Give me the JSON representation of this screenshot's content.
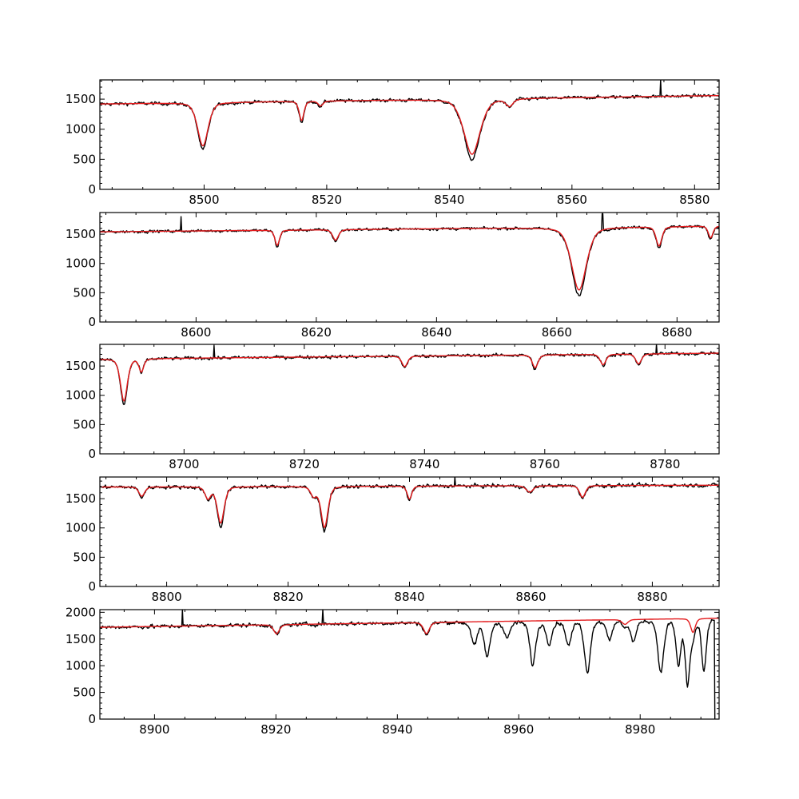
{
  "colors": {
    "observed": "#000000",
    "model": "#e31a1c",
    "background": "#ffffff"
  },
  "chart_data": [
    {
      "type": "line",
      "xlim": [
        8483,
        8584
      ],
      "ylim": [
        0,
        1820
      ],
      "xticks": [
        8500,
        8520,
        8540,
        8560,
        8580
      ],
      "yticks": [
        0,
        500,
        1000,
        1500
      ],
      "baseline": [
        [
          8483,
          1420
        ],
        [
          8584,
          1560
        ]
      ],
      "noise": 45,
      "lines": [
        {
          "center": 8499.8,
          "depth": 720,
          "width": 0.9
        },
        {
          "center": 8515.9,
          "depth": 320,
          "width": 0.4
        },
        {
          "center": 8519.0,
          "depth": 80,
          "width": 0.4
        },
        {
          "center": 8543.7,
          "depth": 920,
          "width": 1.4
        },
        {
          "center": 8549.8,
          "depth": 120,
          "width": 0.6
        }
      ],
      "spikes": [
        {
          "x": 8574.5,
          "y": 1820
        }
      ],
      "grid": false,
      "legend": "none"
    },
    {
      "type": "line",
      "xlim": [
        8584,
        8687
      ],
      "ylim": [
        0,
        1870
      ],
      "xticks": [
        8600,
        8620,
        8640,
        8660,
        8680
      ],
      "yticks": [
        0,
        500,
        1000,
        1500
      ],
      "baseline": [
        [
          8584,
          1540
        ],
        [
          8687,
          1640
        ]
      ],
      "noise": 40,
      "lines": [
        {
          "center": 8613.5,
          "depth": 260,
          "width": 0.4
        },
        {
          "center": 8623.2,
          "depth": 180,
          "width": 0.5
        },
        {
          "center": 8663.7,
          "depth": 1070,
          "width": 1.3
        },
        {
          "center": 8677.0,
          "depth": 330,
          "width": 0.5
        },
        {
          "center": 8685.6,
          "depth": 200,
          "width": 0.4
        }
      ],
      "spikes": [
        {
          "x": 8597.5,
          "y": 1800
        },
        {
          "x": 8667.6,
          "y": 1850
        }
      ],
      "grid": false,
      "legend": "none"
    },
    {
      "type": "line",
      "xlim": [
        8686,
        8789
      ],
      "ylim": [
        0,
        1870
      ],
      "xticks": [
        8700,
        8720,
        8740,
        8760,
        8780
      ],
      "yticks": [
        0,
        500,
        1000,
        1500
      ],
      "baseline": [
        [
          8686,
          1620
        ],
        [
          8789,
          1720
        ]
      ],
      "noise": 45,
      "lines": [
        {
          "center": 8690.0,
          "depth": 720,
          "width": 0.6
        },
        {
          "center": 8692.9,
          "depth": 220,
          "width": 0.4
        },
        {
          "center": 8736.7,
          "depth": 180,
          "width": 0.5
        },
        {
          "center": 8758.4,
          "depth": 220,
          "width": 0.5
        },
        {
          "center": 8769.7,
          "depth": 180,
          "width": 0.5
        },
        {
          "center": 8775.6,
          "depth": 170,
          "width": 0.5
        }
      ],
      "spikes": [
        {
          "x": 8705.0,
          "y": 1850
        },
        {
          "x": 8778.6,
          "y": 1870
        }
      ],
      "grid": false,
      "legend": "none"
    },
    {
      "type": "line",
      "xlim": [
        8789,
        8891
      ],
      "ylim": [
        0,
        1870
      ],
      "xticks": [
        8800,
        8820,
        8840,
        8860,
        8880
      ],
      "yticks": [
        0,
        500,
        1000,
        1500
      ],
      "baseline": [
        [
          8789,
          1700
        ],
        [
          8891,
          1730
        ]
      ],
      "noise": 50,
      "lines": [
        {
          "center": 8795.9,
          "depth": 160,
          "width": 0.5
        },
        {
          "center": 8806.8,
          "depth": 200,
          "width": 0.5
        },
        {
          "center": 8808.9,
          "depth": 620,
          "width": 0.6
        },
        {
          "center": 8824.2,
          "depth": 160,
          "width": 0.5
        },
        {
          "center": 8826.0,
          "depth": 700,
          "width": 0.6
        },
        {
          "center": 8840.0,
          "depth": 220,
          "width": 0.4
        },
        {
          "center": 8859.8,
          "depth": 110,
          "width": 0.6
        },
        {
          "center": 8868.5,
          "depth": 200,
          "width": 0.5
        }
      ],
      "spikes": [
        {
          "x": 8847.5,
          "y": 1870
        }
      ],
      "grid": false,
      "legend": "none"
    },
    {
      "type": "line",
      "xlim": [
        8891,
        8993
      ],
      "ylim": [
        0,
        2050
      ],
      "xticks": [
        8900,
        8920,
        8940,
        8960,
        8980
      ],
      "yticks": [
        0,
        500,
        1000,
        1500,
        2000
      ],
      "baseline": [
        [
          8891,
          1720
        ],
        [
          8993,
          1890
        ]
      ],
      "noise": 60,
      "lines": [
        {
          "center": 8920.1,
          "depth": 170,
          "width": 0.5
        },
        {
          "center": 8944.8,
          "depth": 210,
          "width": 0.5
        },
        {
          "center": 8977.5,
          "depth": 90,
          "width": 0.5
        },
        {
          "center": 8988.7,
          "depth": 260,
          "width": 0.4
        }
      ],
      "telluric": [
        {
          "center": 8952.7,
          "depth": 420,
          "width": 0.5
        },
        {
          "center": 8954.8,
          "depth": 650,
          "width": 0.5
        },
        {
          "center": 8958.1,
          "depth": 300,
          "width": 0.5
        },
        {
          "center": 8962.3,
          "depth": 820,
          "width": 0.5
        },
        {
          "center": 8965.0,
          "depth": 400,
          "width": 0.5
        },
        {
          "center": 8968.2,
          "depth": 450,
          "width": 0.5
        },
        {
          "center": 8971.3,
          "depth": 980,
          "width": 0.5
        },
        {
          "center": 8975.0,
          "depth": 350,
          "width": 0.5
        },
        {
          "center": 8978.9,
          "depth": 400,
          "width": 0.5
        },
        {
          "center": 8983.4,
          "depth": 1000,
          "width": 0.5
        },
        {
          "center": 8986.3,
          "depth": 850,
          "width": 0.4
        },
        {
          "center": 8987.8,
          "depth": 1200,
          "width": 0.4
        },
        {
          "center": 8990.5,
          "depth": 1000,
          "width": 0.4
        }
      ],
      "spikes": [
        {
          "x": 8904.6,
          "y": 2050
        },
        {
          "x": 8927.7,
          "y": 2050
        }
      ],
      "drop_end": {
        "x": 8992.3,
        "y": 0
      },
      "grid": false,
      "legend": "none"
    }
  ]
}
